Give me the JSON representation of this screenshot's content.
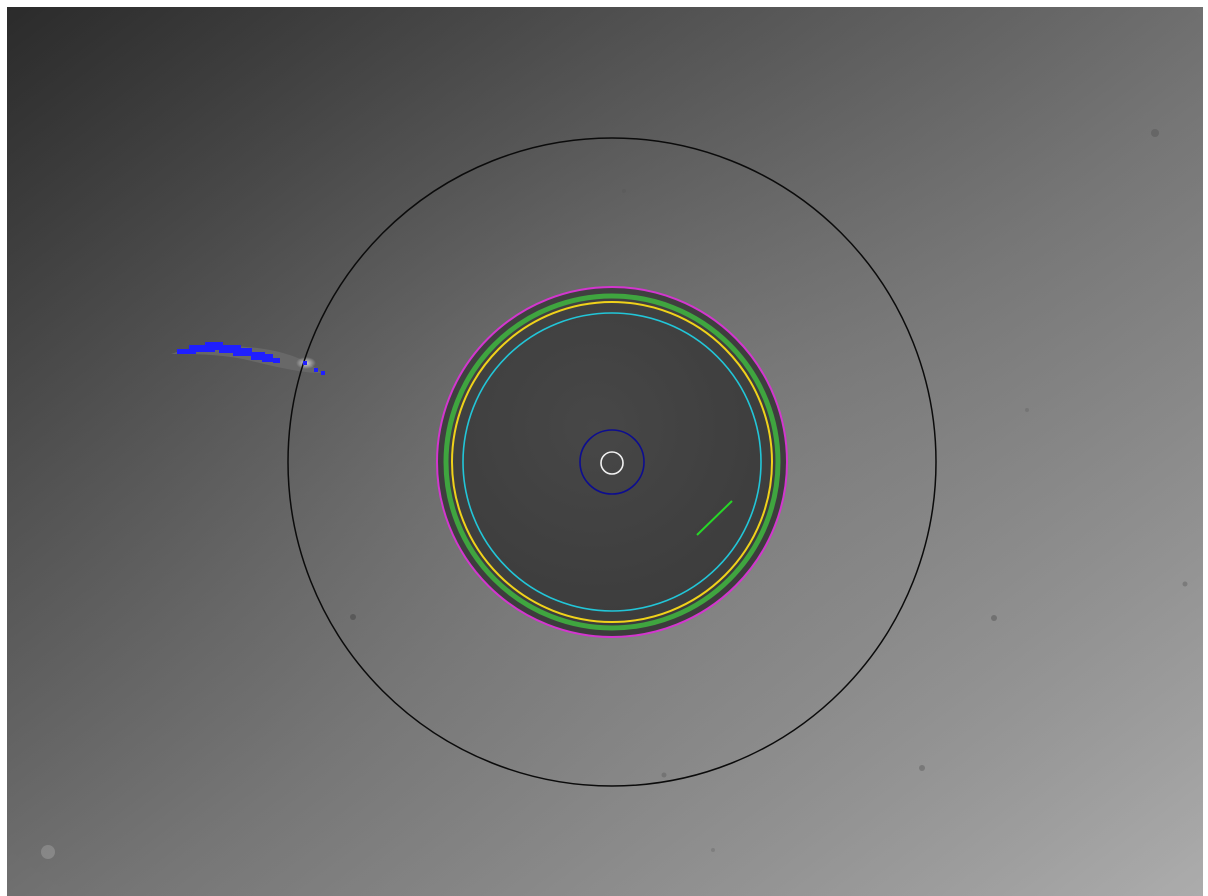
{
  "colors": {
    "background_dark": "#2b2b2b",
    "background_light": "#a7a7a7",
    "inner_disc": "#3f3f3f",
    "outer_ring": "#0b0b0b",
    "magenta_ring": "#d336cf",
    "green_ring": "#3fa53f",
    "yellow_ring": "#f0d21a",
    "cyan_ring": "#22c6d8",
    "navy_circle": "#0d0d90",
    "white_circle": "#f2f2f2",
    "green_line": "#27d727",
    "blue_mark": "#1f1fff"
  },
  "icons": {
    "outer_ring": "outer-ring-icon",
    "target_rings": "target-ring-icon",
    "center_marker": "center-circle-icon",
    "vector_marker": "vector-line-icon",
    "blob_marker": "blob-annotation-icon"
  }
}
